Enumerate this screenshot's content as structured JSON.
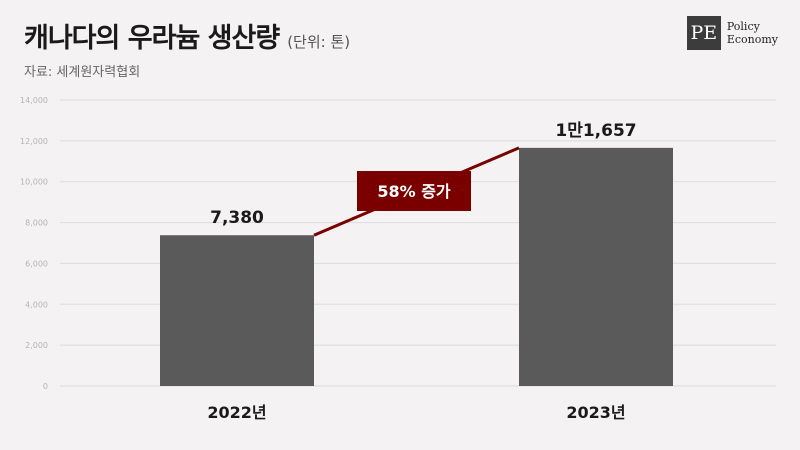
{
  "header": {
    "title": "캐나다의 우라늄 생산량",
    "unit": "(단위: 톤)",
    "source": "자료: 세계원자력협회"
  },
  "logo": {
    "mark": "PE",
    "line1": "Policy",
    "line2": "Economy"
  },
  "chart_data": {
    "type": "bar",
    "title": "캐나다의 우라늄 생산량",
    "categories": [
      "2022년",
      "2023년"
    ],
    "values": [
      7380,
      11657
    ],
    "value_labels": [
      "7,380",
      "1만1,657"
    ],
    "ylim": [
      0,
      14000
    ],
    "yticks": [
      0,
      2000,
      4000,
      6000,
      8000,
      10000,
      12000,
      14000
    ],
    "ytick_labels": [
      "0",
      "2,000",
      "4,000",
      "6,000",
      "8,000",
      "10,000",
      "12,000",
      "14,000"
    ],
    "grid": true,
    "annotation": "58% 증가",
    "colors": {
      "bar": "#5a5a5a",
      "annotation": "#7a0000",
      "grid": "#dcdcdc"
    }
  }
}
